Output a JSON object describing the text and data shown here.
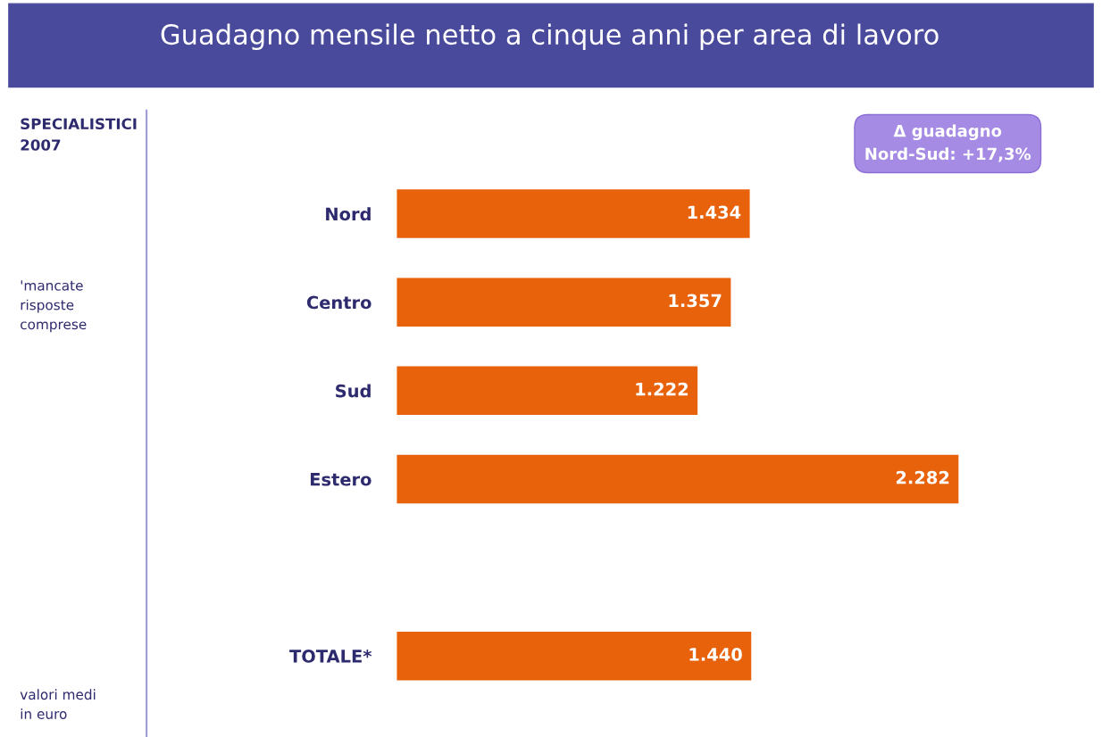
{
  "chart_data": {
    "type": "bar",
    "orientation": "horizontal",
    "title": "Guadagno mensile netto a cinque anni per area di lavoro",
    "categories": [
      "Nord",
      "Centro",
      "Sud",
      "Estero",
      null,
      "TOTALE*"
    ],
    "values": [
      1434,
      1357,
      1222,
      2282,
      null,
      1440
    ],
    "value_labels": [
      "1.434",
      "1.357",
      "1.222",
      "2.282",
      null,
      "1.440"
    ],
    "color": "#e8620c",
    "annotations": [
      "SPECIALISTICI\n2007",
      "'mancate\nrisposte\ncomprese",
      "valori medi\nin euro",
      "Δ guadagno\nNord-Sud: +17,3%"
    ]
  }
}
